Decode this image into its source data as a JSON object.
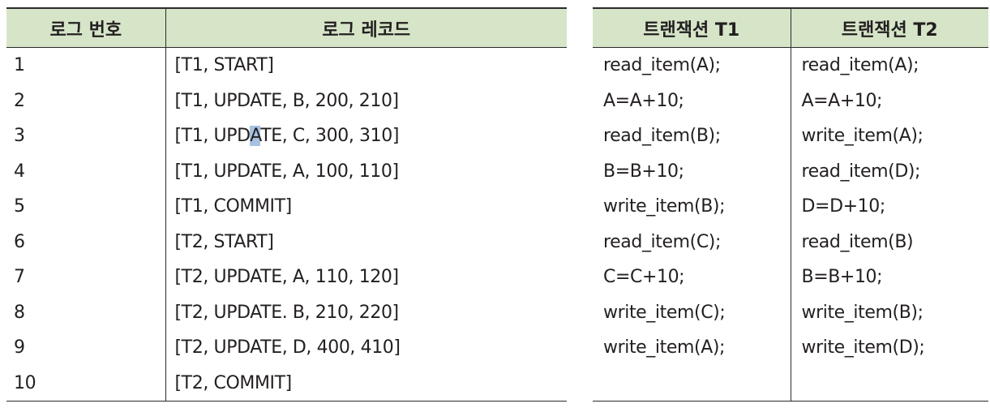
{
  "log_table": {
    "headers": [
      "로그 번호",
      "로그 레코드"
    ],
    "rows": [
      {
        "num": "1",
        "record": "[T1, START]"
      },
      {
        "num": "2",
        "record": "[T1, UPDATE, B, 200, 210]"
      },
      {
        "num": "3",
        "record_before": "[T1, UPD",
        "record_highlight": "A",
        "record_after": "TE, C, 300, 310]"
      },
      {
        "num": "4",
        "record": "[T1, UPDATE, A, 100, 110]"
      },
      {
        "num": "5",
        "record": "[T1, COMMIT]"
      },
      {
        "num": "6",
        "record": "[T2, START]"
      },
      {
        "num": "7",
        "record": "[T2, UPDATE, A, 110, 120]"
      },
      {
        "num": "8",
        "record": "[T2, UPDATE. B, 210, 220]"
      },
      {
        "num": "9",
        "record": "[T2, UPDATE, D, 400, 410]"
      },
      {
        "num": "10",
        "record": "[T2, COMMIT]"
      }
    ]
  },
  "transaction_table": {
    "headers": [
      "트랜잭션 T1",
      "트랜잭션 T2"
    ],
    "rows": [
      {
        "t1": "read_item(A);",
        "t2": "read_item(A);"
      },
      {
        "t1": "A=A+10;",
        "t2": "A=A+10;"
      },
      {
        "t1": "read_item(B);",
        "t2": "write_item(A);"
      },
      {
        "t1": "B=B+10;",
        "t2": "read_item(D);"
      },
      {
        "t1": "write_item(B);",
        "t2": "D=D+10;"
      },
      {
        "t1": "read_item(C);",
        "t2": "read_item(B)"
      },
      {
        "t1": "C=C+10;",
        "t2": "B=B+10;"
      },
      {
        "t1": "write_item(C);",
        "t2": "write_item(B);"
      },
      {
        "t1": "write_item(A);",
        "t2": "write_item(D);"
      }
    ]
  },
  "colors": {
    "header_bg": "#d6e5c8",
    "highlight": "#a7c2e0",
    "rule": "#2b2b2b"
  }
}
